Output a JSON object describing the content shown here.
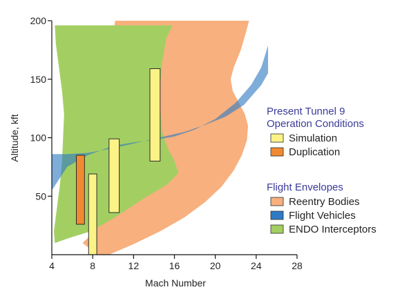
{
  "chart_data": {
    "type": "area",
    "title": "",
    "xlabel": "Mach Number",
    "ylabel": "Altitude, kft",
    "xlim": [
      4,
      28
    ],
    "ylim": [
      0,
      200
    ],
    "xticks": [
      4,
      8,
      12,
      16,
      20,
      24,
      28
    ],
    "yticks": [
      50,
      100,
      150,
      200
    ],
    "grid": false,
    "legend_position": "right",
    "legend_groups": [
      {
        "heading": "Present Tunnel 9 Operation Conditions",
        "heading_lines": [
          "Present Tunnel 9",
          "Operation Conditions"
        ],
        "items": [
          "Simulation",
          "Duplication"
        ]
      },
      {
        "heading": "Flight Envelopes",
        "heading_lines": [
          "Flight Envelopes"
        ],
        "items": [
          "Reentry Bodies",
          "Flight Vehicles",
          "ENDO Interceptors"
        ]
      }
    ],
    "series": [
      {
        "name": "Reentry Bodies",
        "kind": "envelope",
        "color": "#f7b07e",
        "polygon": [
          [
            10.2,
            200
          ],
          [
            23.3,
            200
          ],
          [
            23.0,
            190
          ],
          [
            22.5,
            175
          ],
          [
            21.8,
            160
          ],
          [
            21.5,
            150
          ],
          [
            21.7,
            140
          ],
          [
            22.3,
            130
          ],
          [
            22.9,
            120
          ],
          [
            23.2,
            110
          ],
          [
            23.1,
            98
          ],
          [
            22.6,
            85
          ],
          [
            21.8,
            72
          ],
          [
            20.6,
            58
          ],
          [
            19.0,
            45
          ],
          [
            17.0,
            32
          ],
          [
            14.6,
            20
          ],
          [
            12.0,
            9
          ],
          [
            9.6,
            0
          ],
          [
            7.6,
            0
          ],
          [
            7.6,
            6
          ],
          [
            7.0,
            10
          ],
          [
            8.2,
            20
          ],
          [
            8.9,
            35
          ],
          [
            9.3,
            50
          ],
          [
            9.5,
            65
          ],
          [
            9.6,
            80
          ],
          [
            9.6,
            100
          ],
          [
            9.4,
            115
          ],
          [
            9.2,
            130
          ],
          [
            9.3,
            145
          ],
          [
            9.6,
            165
          ],
          [
            9.9,
            185
          ],
          [
            10.2,
            200
          ]
        ]
      },
      {
        "name": "ENDO Interceptors",
        "kind": "envelope",
        "color": "#a3cf62",
        "polygon": [
          [
            4.3,
            196
          ],
          [
            15.8,
            196
          ],
          [
            15.2,
            185
          ],
          [
            14.8,
            165
          ],
          [
            14.6,
            145
          ],
          [
            14.6,
            125
          ],
          [
            14.8,
            105
          ],
          [
            15.4,
            90
          ],
          [
            16.0,
            80
          ],
          [
            16.4,
            70
          ],
          [
            15.3,
            60
          ],
          [
            13.0,
            48
          ],
          [
            10.2,
            32
          ],
          [
            7.8,
            20
          ],
          [
            5.6,
            14
          ],
          [
            4.3,
            10
          ],
          [
            4.2,
            20
          ],
          [
            4.5,
            40
          ],
          [
            4.8,
            60
          ],
          [
            5.0,
            80
          ],
          [
            5.1,
            100
          ],
          [
            5.2,
            120
          ],
          [
            5.0,
            140
          ],
          [
            4.7,
            160
          ],
          [
            4.4,
            180
          ],
          [
            4.3,
            196
          ]
        ]
      },
      {
        "name": "Flight Vehicles",
        "kind": "envelope",
        "color": "#2f7ac4",
        "opacity": 0.62,
        "polygon": [
          [
            4.0,
            55
          ],
          [
            5.5,
            75
          ],
          [
            7.5,
            85
          ],
          [
            10.0,
            93
          ],
          [
            12.0,
            96
          ],
          [
            14.0,
            98
          ],
          [
            16.0,
            101
          ],
          [
            18.0,
            107
          ],
          [
            20.0,
            116
          ],
          [
            22.0,
            130
          ],
          [
            23.5,
            145
          ],
          [
            24.5,
            160
          ],
          [
            25.2,
            180
          ],
          [
            25.6,
            205
          ],
          [
            27.2,
            205
          ],
          [
            26.6,
            185
          ],
          [
            25.8,
            165
          ],
          [
            24.5,
            145
          ],
          [
            22.8,
            128
          ],
          [
            21.0,
            118
          ],
          [
            19.0,
            111
          ],
          [
            17.0,
            105
          ],
          [
            15.0,
            101
          ],
          [
            12.5,
            96
          ],
          [
            10.0,
            91
          ],
          [
            7.5,
            87
          ],
          [
            5.5,
            86
          ],
          [
            4.0,
            86
          ]
        ]
      },
      {
        "name": "Simulation",
        "kind": "bars",
        "color": "#fbf386",
        "bars": [
          {
            "x0": 7.6,
            "x1": 8.4,
            "y_low": 0,
            "y_high": 69
          },
          {
            "x0": 9.6,
            "x1": 10.6,
            "y_low": 36,
            "y_high": 99
          },
          {
            "x0": 13.6,
            "x1": 14.6,
            "y_low": 80,
            "y_high": 159
          }
        ]
      },
      {
        "name": "Duplication",
        "kind": "bars",
        "color": "#f08a30",
        "bars": [
          {
            "x0": 6.4,
            "x1": 7.2,
            "y_low": 26,
            "y_high": 85
          }
        ]
      }
    ]
  }
}
